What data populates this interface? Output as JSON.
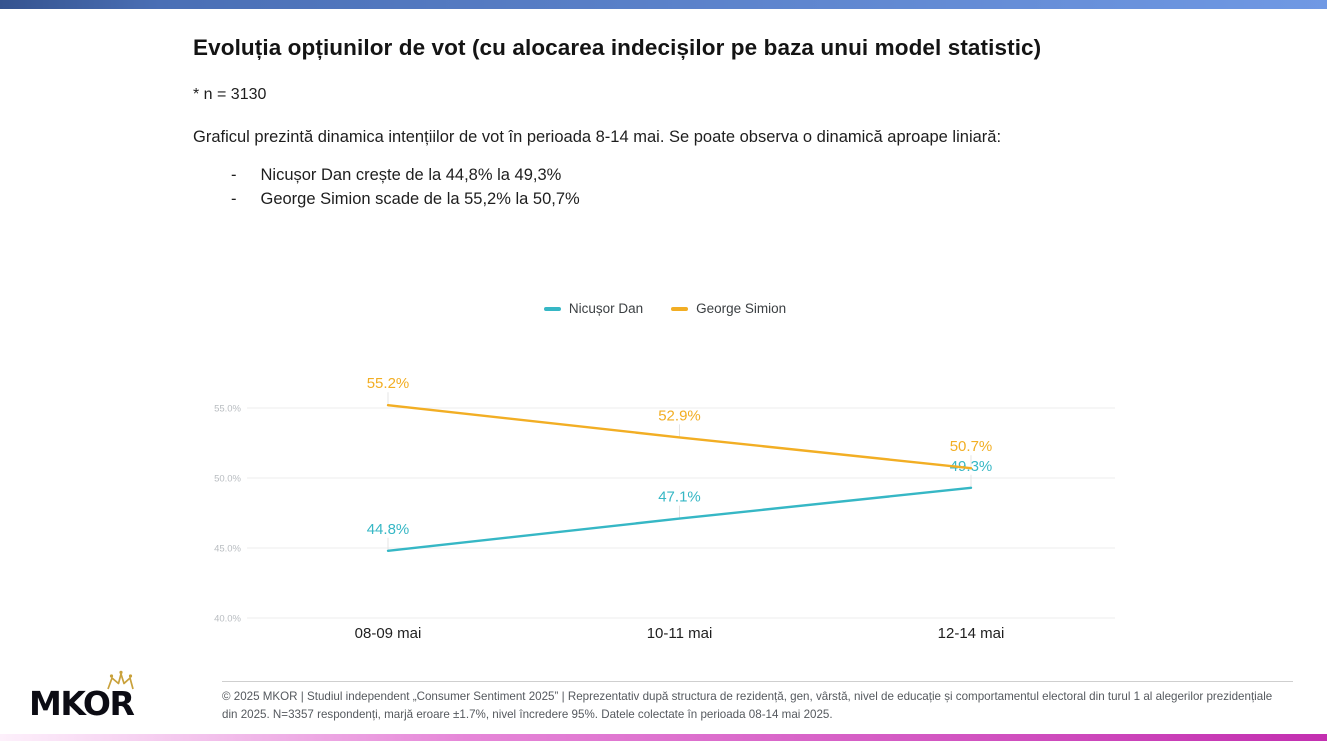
{
  "page": {
    "top_bar_gradient": [
      "#35538f",
      "#7099e4"
    ],
    "bottom_bar_gradient": [
      "#fdf0fb",
      "#c32fb0"
    ],
    "background": "#ffffff"
  },
  "header": {
    "title": "Evoluția opțiunilor de vot (cu alocarea indecișilor pe baza unui model statistic)",
    "sample_note": "* n = 3130",
    "description": "Graficul prezintă dinamica intențiilor de vot în perioada 8-14 mai. Se poate observa o dinamică aproape liniară:",
    "bullets": [
      "Nicușor Dan crește de la 44,8% la 49,3%",
      "George Simion scade de la 55,2% la 50,7%"
    ]
  },
  "chart_data": {
    "type": "line",
    "categories": [
      "08-09 mai",
      "10-11 mai",
      "12-14 mai"
    ],
    "series": [
      {
        "name": "Nicușor Dan",
        "color": "#36b7c5",
        "values": [
          44.8,
          47.1,
          49.3
        ],
        "labels": [
          "44.8%",
          "47.1%",
          "49.3%"
        ]
      },
      {
        "name": "George Simion",
        "color": "#f2ae24",
        "values": [
          55.2,
          52.9,
          50.7
        ],
        "labels": [
          "55.2%",
          "52.9%",
          "50.7%"
        ]
      }
    ],
    "yticks": [
      55.0,
      50.0,
      45.0,
      40.0
    ],
    "ytick_labels": [
      "55.0%",
      "50.0%",
      "45.0%",
      "40.0%"
    ],
    "ylim": [
      40,
      57.5
    ],
    "grid": true,
    "legend_position": "top",
    "gridline_color": "#ececec",
    "ytick_color": "#b8bcc0",
    "xtick_color": "#1f1f1f"
  },
  "footer": {
    "logo_text": "MKOR",
    "copyright": "© 2025 MKOR | Studiul independent „Consumer Sentiment 2025” | Reprezentativ după structura de rezidență, gen, vârstă, nivel de educație și comportamentul electoral din turul 1 al alegerilor prezidențiale din 2025. N=3357 respondenți, marjă eroare ±1.7%, nivel încredere 95%. Datele colectate în perioada 08-14 mai 2025."
  }
}
